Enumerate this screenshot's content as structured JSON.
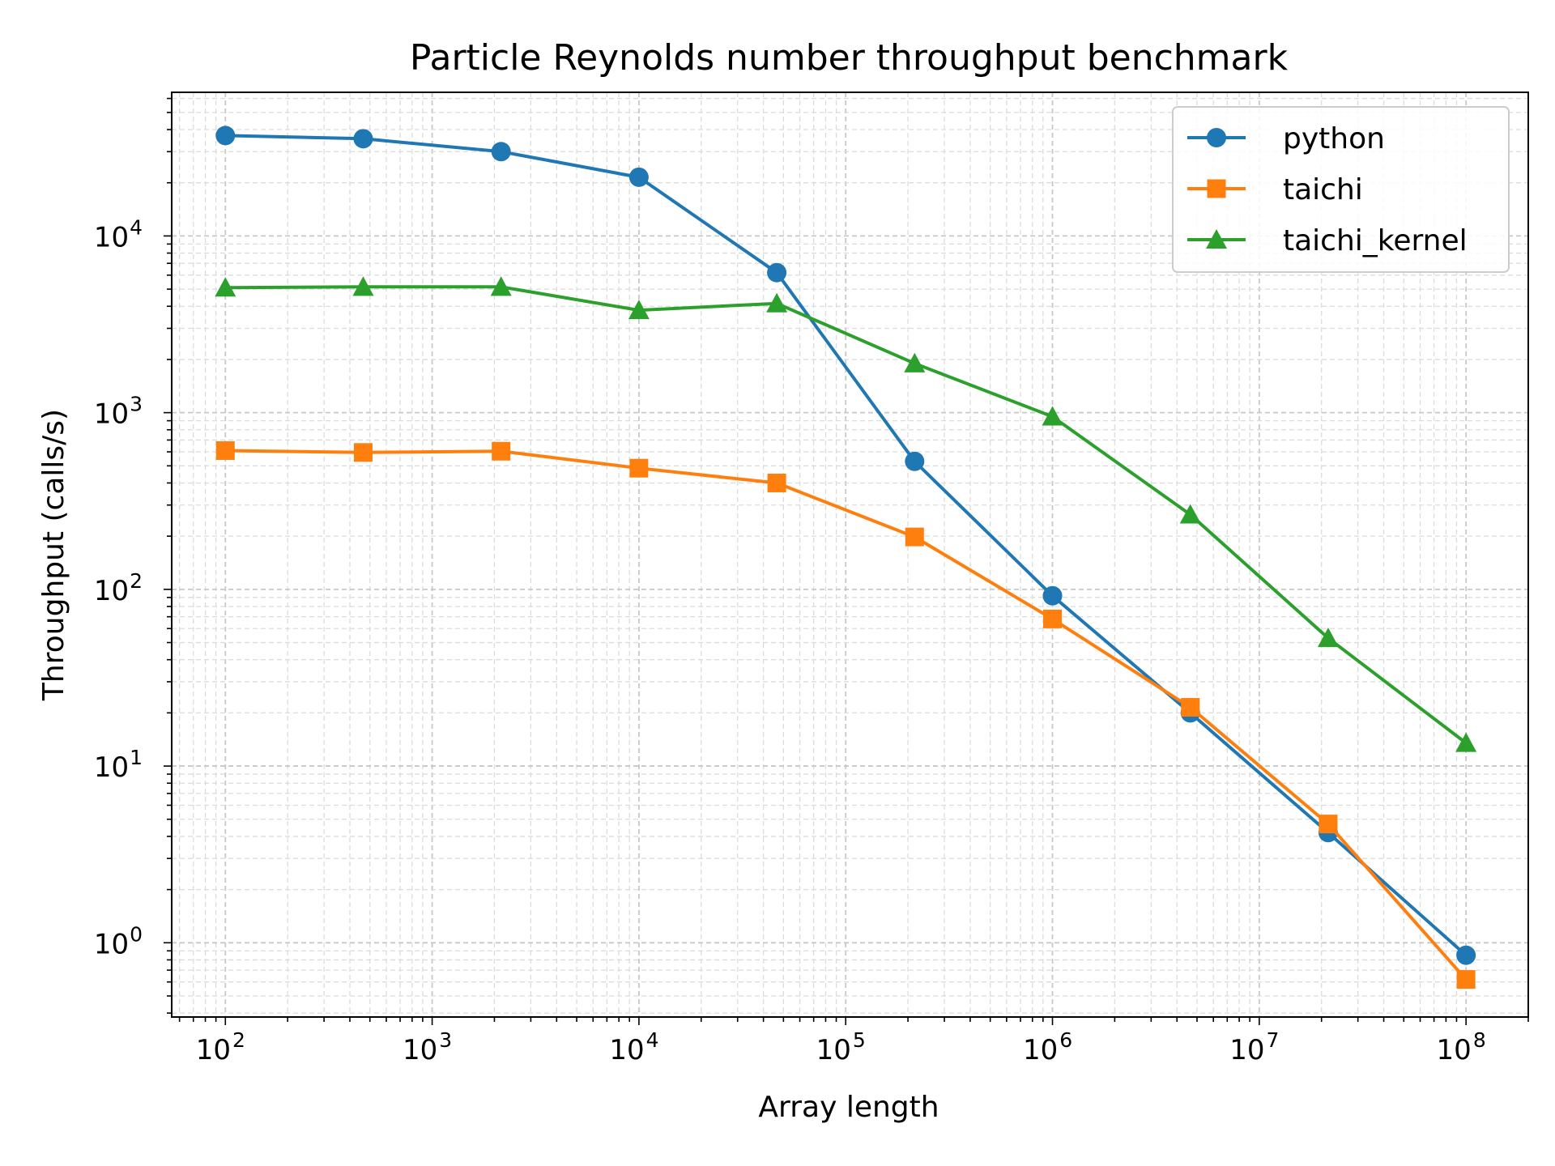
{
  "chart_data": {
    "type": "line",
    "title": "Particle Reynolds number throughput benchmark",
    "xlabel": "Array length",
    "ylabel": "Throughput (calls/s)",
    "xscale": "log",
    "yscale": "log",
    "xlim": [
      55,
      200000000
    ],
    "ylim": [
      0.38,
      65000
    ],
    "grid": true,
    "legend_position": "top-right",
    "x_ticks": [
      {
        "base": "10",
        "exp": "2",
        "value": 100
      },
      {
        "base": "10",
        "exp": "3",
        "value": 1000
      },
      {
        "base": "10",
        "exp": "4",
        "value": 10000
      },
      {
        "base": "10",
        "exp": "5",
        "value": 100000
      },
      {
        "base": "10",
        "exp": "6",
        "value": 1000000
      },
      {
        "base": "10",
        "exp": "7",
        "value": 10000000
      },
      {
        "base": "10",
        "exp": "8",
        "value": 100000000
      }
    ],
    "y_ticks": [
      {
        "base": "10",
        "exp": "0",
        "value": 1
      },
      {
        "base": "10",
        "exp": "1",
        "value": 10
      },
      {
        "base": "10",
        "exp": "2",
        "value": 100
      },
      {
        "base": "10",
        "exp": "3",
        "value": 1000
      },
      {
        "base": "10",
        "exp": "4",
        "value": 10000
      }
    ],
    "x": [
      100,
      464,
      2154,
      10000,
      46416,
      215443,
      1000000,
      4641589,
      21544347,
      100000000
    ],
    "series": [
      {
        "name": "python",
        "color": "#1f77b4",
        "marker": "circle",
        "values": [
          37000,
          35500,
          30000,
          21500,
          6200,
          530,
          92,
          20,
          4.2,
          0.85
        ]
      },
      {
        "name": "taichi",
        "color": "#ff7f0e",
        "marker": "square",
        "values": [
          610,
          595,
          605,
          485,
          400,
          198,
          68,
          21.5,
          4.7,
          0.62
        ]
      },
      {
        "name": "taichi_kernel",
        "color": "#2ca02c",
        "marker": "triangle",
        "values": [
          5100,
          5150,
          5150,
          3800,
          4150,
          1900,
          950,
          265,
          53,
          13.5
        ]
      }
    ]
  }
}
